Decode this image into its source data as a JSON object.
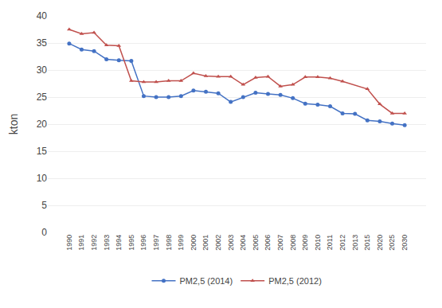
{
  "chart_data": {
    "type": "line",
    "categories": [
      "1990",
      "1991",
      "1992",
      "1993",
      "1994",
      "1995",
      "1996",
      "1997",
      "1998",
      "1999",
      "2000",
      "2001",
      "2002",
      "2003",
      "2004",
      "2005",
      "2006",
      "2007",
      "2008",
      "2009",
      "2010",
      "2011",
      "2012",
      "2013",
      "2015",
      "2020",
      "2025",
      "2030"
    ],
    "ylabel": "kton",
    "ylim": [
      0,
      40
    ],
    "yticks": [
      0,
      5,
      10,
      15,
      20,
      25,
      30,
      35,
      40
    ],
    "grid": true,
    "legend": "bottom",
    "series": [
      {
        "name": "PM2,5 (2014)",
        "color": "#4472C4",
        "marker": "circle",
        "x": [
          "1990",
          "1991",
          "1992",
          "1993",
          "1994",
          "1995",
          "1996",
          "1997",
          "1998",
          "1999",
          "2000",
          "2001",
          "2002",
          "2003",
          "2004",
          "2005",
          "2006",
          "2007",
          "2008",
          "2009",
          "2010",
          "2011",
          "2012",
          "2013",
          "2015",
          "2020",
          "2025",
          "2030"
        ],
        "values": [
          34.9,
          33.8,
          33.5,
          32.0,
          31.8,
          31.7,
          25.2,
          25.0,
          25.0,
          25.2,
          26.2,
          26.0,
          25.7,
          24.1,
          25.0,
          25.8,
          25.6,
          25.4,
          24.8,
          23.8,
          23.6,
          23.3,
          22.0,
          21.9,
          20.7,
          20.5,
          20.1,
          19.8
        ]
      },
      {
        "name": "PM2,5 (2012)",
        "color": "#C0504D",
        "marker": "triangle-up",
        "x": [
          "1990",
          "1991",
          "1992",
          "1993",
          "1994",
          "1995",
          "1996",
          "1997",
          "1998",
          "1999",
          "2000",
          "2001",
          "2002",
          "2003",
          "2004",
          "2005",
          "2006",
          "2007",
          "2008",
          "2009",
          "2010",
          "2011",
          "2012",
          "2015",
          "2020",
          "2025",
          "2030"
        ],
        "values": [
          37.5,
          36.7,
          36.9,
          34.6,
          34.5,
          28.0,
          27.8,
          27.8,
          28.0,
          28.0,
          29.4,
          28.9,
          28.8,
          28.8,
          27.3,
          28.6,
          28.8,
          27.0,
          27.3,
          28.7,
          28.7,
          28.5,
          27.9,
          26.5,
          23.7,
          22.0,
          22.0
        ]
      }
    ]
  }
}
